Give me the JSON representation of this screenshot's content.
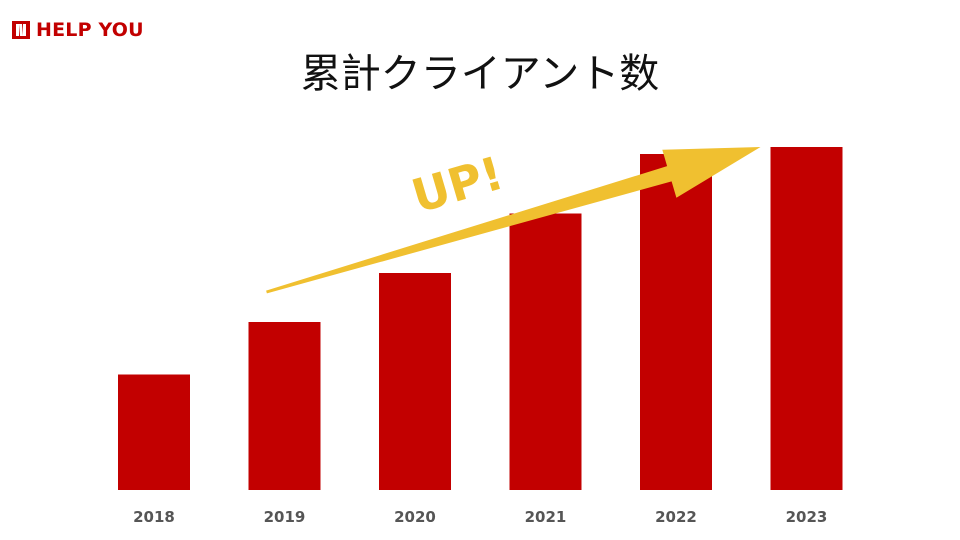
{
  "brand": {
    "name": "HELP YOU",
    "color": "#c20000",
    "logo_icon": "help-you-logo-icon"
  },
  "chart_data": {
    "type": "bar",
    "title": "累計クライアント数",
    "xlabel": "",
    "ylabel": "",
    "categories": [
      "2018",
      "2019",
      "2020",
      "2021",
      "2022",
      "2023"
    ],
    "values": [
      33,
      48,
      62,
      79,
      96,
      98
    ],
    "ylim": [
      0,
      100
    ],
    "grid": false,
    "bar_color": "#c20000",
    "tick_color": "#555555",
    "annotation": {
      "text": "UP!",
      "type": "trend-arrow",
      "color": "#f0c030"
    }
  }
}
